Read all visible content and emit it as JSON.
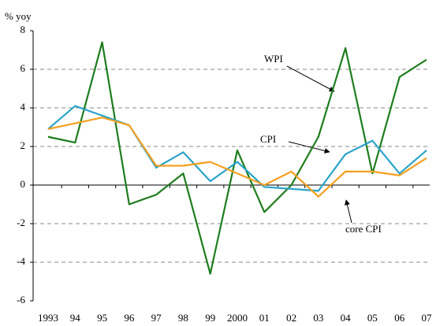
{
  "chart_data": {
    "type": "line",
    "y_label": "% yoy",
    "categories": [
      "1993",
      "94",
      "95",
      "96",
      "97",
      "98",
      "99",
      "2000",
      "01",
      "02",
      "03",
      "04",
      "05",
      "06",
      "07"
    ],
    "series": [
      {
        "name": "WPI",
        "color": "#1e7d1e",
        "values": [
          2.5,
          2.2,
          7.4,
          -1.0,
          -0.5,
          0.6,
          -4.6,
          1.8,
          -1.4,
          0.0,
          2.5,
          7.1,
          0.6,
          5.6,
          6.5
        ]
      },
      {
        "name": "CPI",
        "color": "#2ba3c8",
        "values": [
          2.9,
          4.1,
          3.6,
          3.1,
          0.9,
          1.7,
          0.2,
          1.2,
          -0.1,
          -0.2,
          -0.3,
          1.6,
          2.3,
          0.6,
          1.8
        ]
      },
      {
        "name": "core CPI",
        "color": "#f5a020",
        "values": [
          2.9,
          3.2,
          3.5,
          3.1,
          1.0,
          1.0,
          1.2,
          0.6,
          0.0,
          0.7,
          -0.6,
          0.7,
          0.7,
          0.5,
          1.4
        ]
      }
    ],
    "ylim": [
      -6,
      8
    ],
    "yticks": [
      -6,
      -4,
      -2,
      0,
      2,
      4,
      6,
      8
    ],
    "grid": true
  }
}
